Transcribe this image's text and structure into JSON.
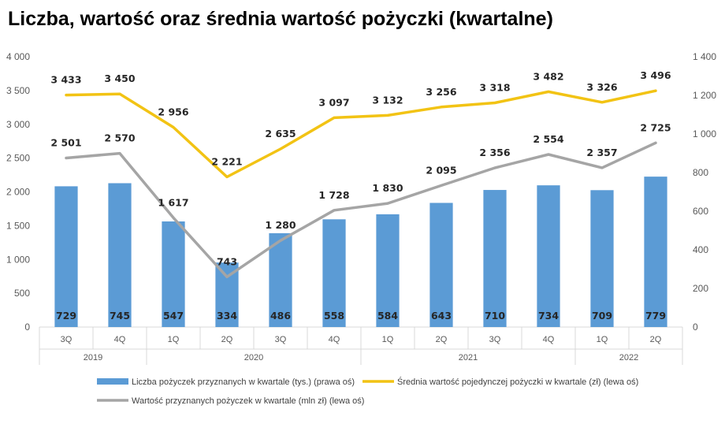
{
  "chart_data": {
    "type": "bar",
    "title": "Liczba, wartość oraz średnia wartość pożyczki (kwartalne)",
    "categories": [
      "3Q",
      "4Q",
      "1Q",
      "2Q",
      "3Q",
      "4Q",
      "1Q",
      "2Q",
      "3Q",
      "4Q",
      "1Q",
      "2Q"
    ],
    "year_groups": [
      {
        "label": "2019",
        "count": 2
      },
      {
        "label": "2020",
        "count": 4
      },
      {
        "label": "2021",
        "count": 4
      },
      {
        "label": "2022",
        "count": 2
      }
    ],
    "left_axis": {
      "min": 0,
      "max": 4000,
      "step": 500,
      "tick_labels": [
        "0",
        "500",
        "1 000",
        "1 500",
        "2 000",
        "2 500",
        "3 000",
        "3 500",
        "4 000"
      ]
    },
    "right_axis": {
      "min": 0,
      "max": 1400,
      "step": 200,
      "tick_labels": [
        "0",
        "200",
        "400",
        "600",
        "800",
        "1 000",
        "1 200",
        "1 400"
      ]
    },
    "series": [
      {
        "name": "Liczba pożyczek przyznanych w kwartale (tys.) (prawa oś)",
        "kind": "bar",
        "axis": "right",
        "color": "#5B9BD5",
        "values": [
          729,
          745,
          547,
          334,
          486,
          558,
          584,
          643,
          710,
          734,
          709,
          779
        ],
        "labels": [
          "729",
          "745",
          "547",
          "334",
          "486",
          "558",
          "584",
          "643",
          "710",
          "734",
          "709",
          "779"
        ]
      },
      {
        "name": "Średnia wartość pojedynczej pożyczki w kwartale (zł) (lewa oś)",
        "kind": "line",
        "axis": "left",
        "color": "#F2C314",
        "values": [
          3433,
          3450,
          2956,
          2221,
          2635,
          3097,
          3132,
          3256,
          3318,
          3482,
          3326,
          3496
        ],
        "labels": [
          "3 433",
          "3 450",
          "2 956",
          "2 221",
          "2 635",
          "3 097",
          "3 132",
          "3 256",
          "3 318",
          "3 482",
          "3 326",
          "3 496"
        ]
      },
      {
        "name": "Wartość przyznanych pożyczek w kwartale (mln zł) (lewa oś)",
        "kind": "line",
        "axis": "left",
        "color": "#A5A5A5",
        "values": [
          2501,
          2570,
          1617,
          743,
          1280,
          1728,
          1830,
          2095,
          2356,
          2554,
          2357,
          2725
        ],
        "labels": [
          "2 501",
          "2 570",
          "1 617",
          "743",
          "1 280",
          "1 728",
          "1 830",
          "2 095",
          "2 356",
          "2 554",
          "2 357",
          "2 725"
        ]
      }
    ],
    "legend_position": "bottom",
    "grid": false
  }
}
